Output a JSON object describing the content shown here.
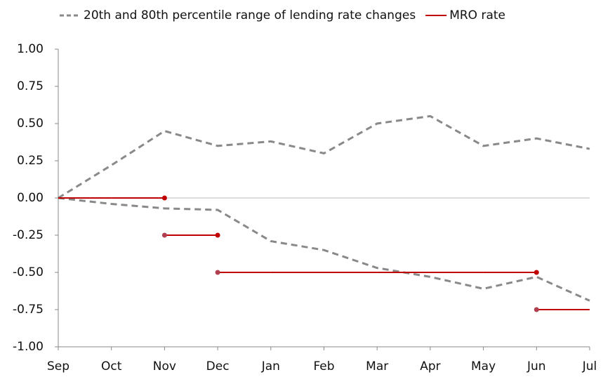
{
  "chart_data": {
    "type": "line",
    "categories": [
      "Sep",
      "Oct",
      "Nov",
      "Dec",
      "Jan",
      "Feb",
      "Mar",
      "Apr",
      "May",
      "Jun",
      "Jul"
    ],
    "series": [
      {
        "name": "20th and 80th percentile range of lending rate changes",
        "color": "#898989",
        "style": "dashed",
        "values": [
          0,
          0.22,
          0.45,
          0.35,
          0.38,
          0.3,
          0.5,
          0.55,
          0.35,
          0.4,
          0.33
        ],
        "lower": [
          0,
          -0.04,
          -0.07,
          -0.08,
          -0.29,
          -0.35,
          -0.47,
          -0.53,
          -0.61,
          -0.53,
          -0.69
        ]
      },
      {
        "name": "MRO rate",
        "color": "#c00000",
        "step": "post",
        "values": [
          0,
          0,
          -0.25,
          -0.5,
          -0.5,
          -0.5,
          -0.5,
          -0.5,
          -0.5,
          -0.75,
          -0.75
        ]
      }
    ],
    "ylim": [
      -1,
      1
    ],
    "yticks": [
      {
        "value": 1,
        "label": "1.00"
      },
      {
        "value": 0.75,
        "label": "0.75"
      },
      {
        "value": 0.5,
        "label": "0.50"
      },
      {
        "value": 0.25,
        "label": "0.25"
      },
      {
        "value": 0,
        "label": "0.00"
      },
      {
        "value": -0.25,
        "label": "-0.25"
      },
      {
        "value": -0.5,
        "label": "-0.50"
      },
      {
        "value": -0.75,
        "label": "-0.75"
      },
      {
        "value": -1,
        "label": "-1.00"
      }
    ],
    "legend": "top"
  }
}
